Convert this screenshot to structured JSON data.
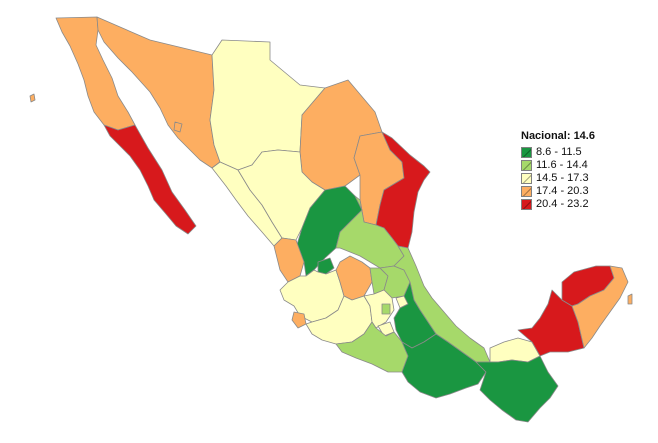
{
  "legend": {
    "title": "Nacional: 14.6",
    "classes": [
      {
        "label": "8.6 - 11.5",
        "color": "#1a9641"
      },
      {
        "label": "11.6 - 14.4",
        "color": "#a6d96a"
      },
      {
        "label": "14.5 - 17.3",
        "color": "#ffffc0"
      },
      {
        "label": "17.4 - 20.3",
        "color": "#fdae61"
      },
      {
        "label": "20.4 - 23.2",
        "color": "#d7191c"
      }
    ]
  },
  "colors": {
    "class1": "#1a9641",
    "class2": "#a6d96a",
    "class3": "#ffffc0",
    "class4": "#fdae61",
    "class5": "#d7191c",
    "border": "#8a8a8a"
  }
}
